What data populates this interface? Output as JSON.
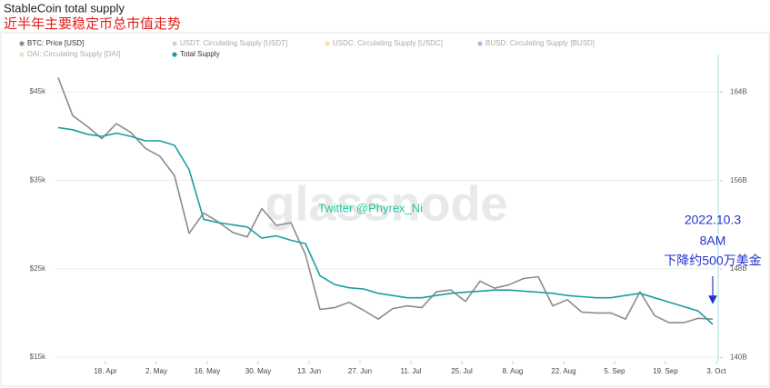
{
  "chart_data": {
    "type": "line",
    "title": "StableCoin total supply",
    "subtitle": "近半年主要稳定币总市值走势",
    "watermark": "glassnode",
    "annotations": [
      {
        "text": "Twitter @Phyrex_Ni",
        "color": "#1ec8a0"
      },
      {
        "text": "2022.10.3",
        "color": "#2233cc"
      },
      {
        "text": "8AM",
        "color": "#2233cc"
      },
      {
        "text": "下降约500万美金",
        "color": "#2233cc"
      }
    ],
    "grid": true,
    "x": [
      "04-05",
      "04-09",
      "04-13",
      "04-17",
      "04-21",
      "04-25",
      "04-29",
      "05-03",
      "05-07",
      "05-11",
      "05-15",
      "05-19",
      "05-23",
      "05-27",
      "05-31",
      "06-04",
      "06-08",
      "06-12",
      "06-16",
      "06-20",
      "06-24",
      "06-28",
      "07-02",
      "07-06",
      "07-10",
      "07-14",
      "07-18",
      "07-22",
      "07-26",
      "07-30",
      "08-03",
      "08-07",
      "08-11",
      "08-15",
      "08-19",
      "08-23",
      "08-27",
      "08-31",
      "09-04",
      "09-08",
      "09-12",
      "09-16",
      "09-20",
      "09-24",
      "09-28",
      "10-02"
    ],
    "xlim": [
      "04-04",
      "10-04"
    ],
    "xticks": [
      {
        "value": "04-18",
        "label": "18. Apr"
      },
      {
        "value": "05-02",
        "label": "2. May"
      },
      {
        "value": "05-16",
        "label": "16. May"
      },
      {
        "value": "05-30",
        "label": "30. May"
      },
      {
        "value": "06-13",
        "label": "13. Jun"
      },
      {
        "value": "06-27",
        "label": "27. Jun"
      },
      {
        "value": "07-11",
        "label": "11. Jul"
      },
      {
        "value": "07-25",
        "label": "25. Jul"
      },
      {
        "value": "08-08",
        "label": "8. Aug"
      },
      {
        "value": "08-22",
        "label": "22. Aug"
      },
      {
        "value": "09-05",
        "label": "5. Sep"
      },
      {
        "value": "09-19",
        "label": "19. Sep"
      },
      {
        "value": "10-03",
        "label": "3. Oct"
      }
    ],
    "ylim": [
      14600,
      48700
    ],
    "yticks": [
      {
        "value": 15000,
        "label": "$15k"
      },
      {
        "value": 25000,
        "label": "$25k"
      },
      {
        "value": 35000,
        "label": "$35k"
      },
      {
        "value": 45000,
        "label": "$45k"
      }
    ],
    "y2lim": [
      139.7,
      167
    ],
    "y2ticks": [
      {
        "value": 140,
        "label": "140B"
      },
      {
        "value": 148,
        "label": "148B"
      },
      {
        "value": 156,
        "label": "156B"
      },
      {
        "value": 164,
        "label": "164B"
      }
    ],
    "series": [
      {
        "name": "BTC: Price [USD]",
        "color": "#8c8c8c",
        "visible": true,
        "axis": "y",
        "values": [
          46600,
          42300,
          41100,
          39700,
          41400,
          40400,
          38600,
          37700,
          35500,
          29000,
          31300,
          30300,
          29100,
          28600,
          31800,
          29900,
          30200,
          26600,
          20400,
          20600,
          21200,
          20300,
          19300,
          20500,
          20800,
          20600,
          22400,
          22600,
          21300,
          23600,
          22800,
          23200,
          23900,
          24100,
          20800,
          21500,
          20100,
          20000,
          20000,
          19300,
          22400,
          19700,
          18900,
          18900,
          19400,
          19300
        ]
      },
      {
        "name": "USDT: Circulating Supply [USDT]",
        "color": "#3cb043",
        "visible": false
      },
      {
        "name": "USDC: Circulating Supply [USDC]",
        "color": "#e8a317",
        "visible": false
      },
      {
        "name": "BUSD: Circulating Supply [BUSD]",
        "color": "#2b2bb8",
        "visible": false
      },
      {
        "name": "DAI: Circulating Supply [DAI]",
        "color": "#7ed957",
        "visible": false
      },
      {
        "name": "Total Supply",
        "color": "#1a9ea0",
        "visible": true,
        "axis": "y2",
        "values": [
          160.8,
          160.6,
          160.2,
          160.0,
          160.3,
          160.0,
          159.6,
          159.6,
          159.2,
          157.0,
          152.5,
          152.2,
          152.0,
          151.8,
          150.8,
          151.0,
          150.6,
          150.3,
          147.4,
          146.6,
          146.3,
          146.2,
          145.8,
          145.6,
          145.4,
          145.4,
          145.6,
          145.8,
          145.9,
          146.0,
          146.1,
          146.1,
          146.0,
          145.9,
          145.8,
          145.6,
          145.5,
          145.4,
          145.4,
          145.6,
          145.8,
          145.4,
          145.0,
          144.6,
          144.2,
          143.0
        ]
      }
    ]
  }
}
